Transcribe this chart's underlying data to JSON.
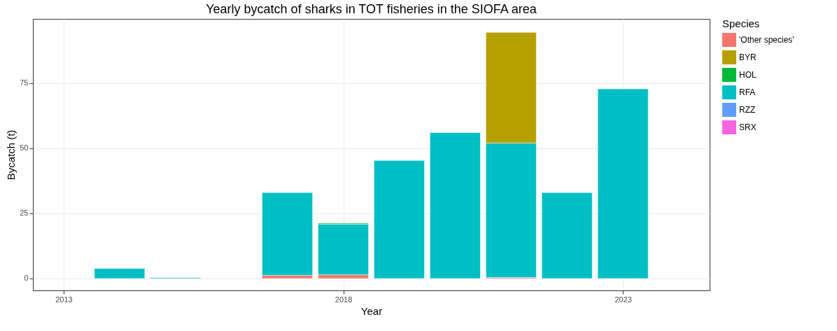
{
  "chart_data": {
    "type": "bar",
    "title": "Yearly bycatch of sharks in TOT fisheries in the SIOFA area",
    "xlabel": "Year",
    "ylabel": "Bycatch (t)",
    "legend_title": "Species",
    "stacked": true,
    "x": [
      2014,
      2015,
      2017,
      2018,
      2019,
      2020,
      2021,
      2022,
      2023
    ],
    "series": [
      {
        "name": "'Other species'",
        "color": "#f8766d",
        "values": [
          null,
          null,
          1.2,
          1.4,
          null,
          null,
          0.4,
          null,
          null
        ]
      },
      {
        "name": "RFA",
        "color": "#00bfc4",
        "values": [
          3.8,
          0.3,
          31.8,
          19.4,
          45.3,
          56,
          51.6,
          33,
          72.8
        ]
      },
      {
        "name": "HOL",
        "color": "#00ba38",
        "values": [
          null,
          null,
          null,
          0.4,
          null,
          null,
          null,
          null,
          null
        ]
      },
      {
        "name": "BYR",
        "color": "#b79f00",
        "values": [
          null,
          null,
          null,
          null,
          null,
          null,
          42.5,
          null,
          null
        ]
      },
      {
        "name": "RZZ",
        "color": "#619cff",
        "values": [
          null,
          null,
          null,
          null,
          null,
          null,
          null,
          null,
          null
        ]
      },
      {
        "name": "SRX",
        "color": "#f564e3",
        "values": [
          null,
          null,
          null,
          null,
          null,
          null,
          null,
          null,
          null
        ]
      }
    ],
    "xlim": [
      2012.45,
      2024.55
    ],
    "xticks": [
      2013,
      2018,
      2023
    ],
    "ylim": [
      -4.6,
      99.7
    ],
    "yticks": [
      0,
      25,
      50,
      75
    ],
    "grid": true,
    "legend": "right"
  }
}
